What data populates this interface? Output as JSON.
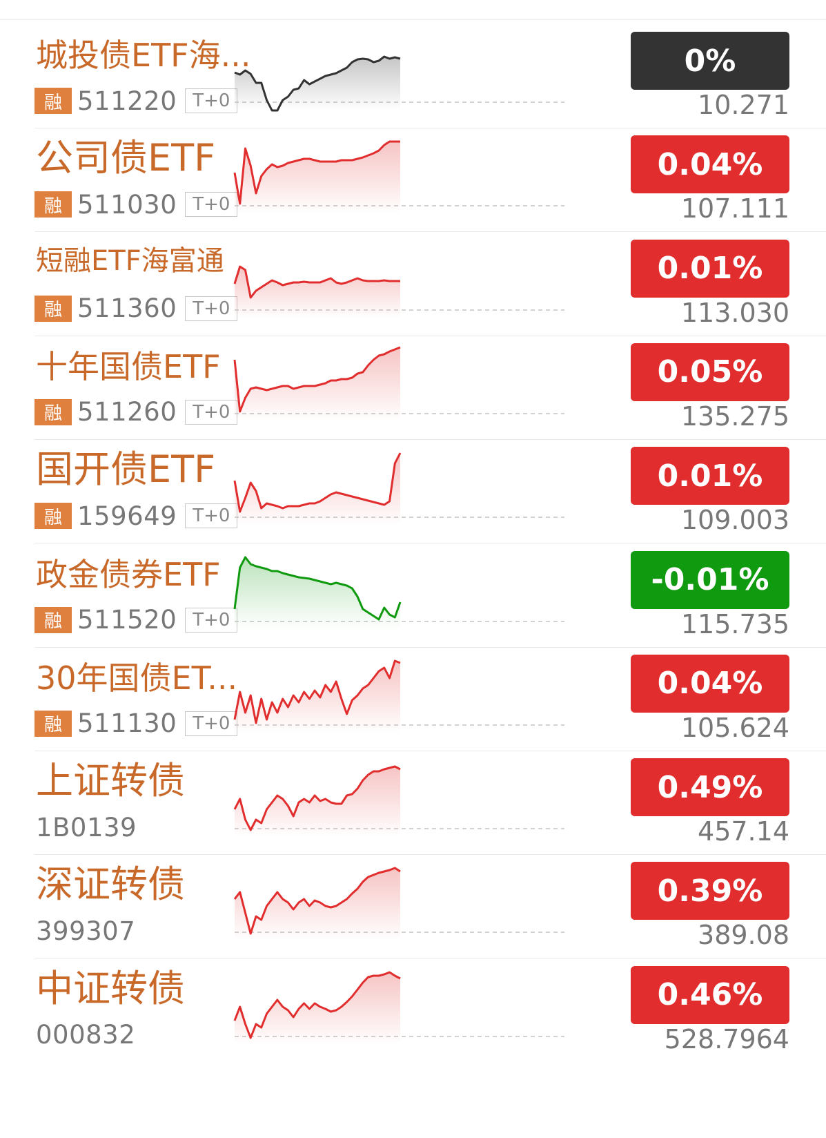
{
  "colors": {
    "up": "#e12d2d",
    "down": "#0f9a0f",
    "flat": "#333333",
    "name": "#c8692a",
    "tag_bg": "#e0803e"
  },
  "rows": [
    {
      "name": "城投债ETF海...",
      "code": "511220",
      "rong": "融",
      "tplus": "T+0",
      "change": "0%",
      "price": "10.271",
      "trend": "flat",
      "name_size": "m",
      "spark": [
        55,
        58,
        52,
        57,
        70,
        70,
        95,
        110,
        110,
        95,
        90,
        80,
        78,
        66,
        72,
        68,
        64,
        60,
        58,
        56,
        52,
        48,
        40,
        36,
        35,
        36,
        40,
        38,
        32,
        35,
        33,
        35
      ]
    },
    {
      "name": "公司债ETF",
      "code": "511030",
      "rong": "融",
      "tplus": "T+0",
      "change": "0.04%",
      "price": "107.111",
      "trend": "up",
      "name_size": "l",
      "spark": [
        50,
        95,
        15,
        40,
        80,
        55,
        45,
        38,
        42,
        40,
        36,
        34,
        32,
        30,
        30,
        32,
        34,
        34,
        34,
        34,
        32,
        32,
        32,
        30,
        28,
        25,
        22,
        18,
        10,
        5,
        5,
        5
      ]
    },
    {
      "name": "短融ETF海富通",
      "code": "511360",
      "rong": "融",
      "tplus": "T+0",
      "change": "0.01%",
      "price": "113.030",
      "trend": "up",
      "name_size": "s",
      "spark": [
        60,
        35,
        40,
        80,
        70,
        65,
        60,
        55,
        58,
        62,
        60,
        58,
        58,
        57,
        58,
        58,
        58,
        55,
        52,
        58,
        60,
        58,
        55,
        52,
        55,
        56,
        56,
        56,
        55,
        56,
        56,
        56
      ]
    },
    {
      "name": "十年国债ETF",
      "code": "511260",
      "rong": "融",
      "tplus": "T+0",
      "change": "0.05%",
      "price": "135.275",
      "trend": "up",
      "name_size": "m",
      "spark": [
        20,
        95,
        75,
        62,
        60,
        62,
        64,
        62,
        60,
        58,
        58,
        62,
        60,
        58,
        58,
        58,
        56,
        54,
        50,
        50,
        48,
        48,
        46,
        40,
        38,
        28,
        20,
        14,
        12,
        8,
        5,
        2
      ]
    },
    {
      "name": "国开债ETF",
      "code": "159649",
      "rong": "融",
      "tplus": "T+0",
      "change": "0.01%",
      "price": "109.003",
      "trend": "up",
      "name_size": "l",
      "spark": [
        45,
        90,
        70,
        48,
        60,
        85,
        78,
        80,
        82,
        85,
        82,
        82,
        82,
        80,
        78,
        78,
        75,
        70,
        65,
        62,
        64,
        66,
        68,
        70,
        72,
        74,
        76,
        78,
        80,
        75,
        20,
        5
      ]
    },
    {
      "name": "政金债券ETF",
      "code": "511520",
      "rong": "融",
      "tplus": "T+0",
      "change": "-0.01%",
      "price": "115.735",
      "trend": "down",
      "name_size": "m",
      "spark": [
        80,
        20,
        5,
        15,
        18,
        20,
        22,
        25,
        25,
        28,
        30,
        32,
        34,
        35,
        36,
        38,
        40,
        42,
        44,
        42,
        44,
        46,
        50,
        62,
        80,
        85,
        90,
        95,
        78,
        88,
        92,
        70
      ]
    },
    {
      "name": "30年国债ET...",
      "code": "511130",
      "rong": "融",
      "tplus": "T+0",
      "change": "0.04%",
      "price": "105.624",
      "trend": "up",
      "name_size": "m",
      "spark": [
        90,
        50,
        80,
        55,
        95,
        60,
        90,
        65,
        80,
        60,
        72,
        55,
        65,
        50,
        60,
        48,
        58,
        40,
        50,
        35,
        60,
        82,
        62,
        55,
        45,
        40,
        30,
        20,
        15,
        30,
        5,
        8
      ]
    },
    {
      "name": "上证转债",
      "code": "1B0139",
      "tplus": "",
      "change": "0.49%",
      "price": "457.14",
      "trend": "up",
      "name_size": "l",
      "spark": [
        70,
        55,
        85,
        100,
        85,
        90,
        70,
        60,
        50,
        55,
        65,
        80,
        60,
        55,
        60,
        50,
        58,
        55,
        60,
        62,
        62,
        50,
        48,
        40,
        28,
        20,
        15,
        15,
        12,
        10,
        8,
        12
      ]
    },
    {
      "name": "深证转债",
      "code": "399307",
      "rong": "",
      "tplus": "",
      "change": "0.39%",
      "price": "389.08",
      "trend": "up",
      "name_size": "l",
      "spark": [
        50,
        40,
        70,
        100,
        75,
        80,
        60,
        50,
        40,
        50,
        55,
        65,
        55,
        50,
        60,
        52,
        55,
        60,
        62,
        60,
        55,
        50,
        42,
        35,
        25,
        18,
        15,
        12,
        10,
        8,
        5,
        10
      ]
    },
    {
      "name": "中证转债",
      "code": "000832",
      "rong": "",
      "tplus": "",
      "change": "0.46%",
      "price": "528.7964",
      "trend": "up",
      "name_size": "l",
      "spark": [
        75,
        55,
        80,
        100,
        80,
        85,
        65,
        55,
        45,
        55,
        60,
        70,
        58,
        50,
        58,
        50,
        55,
        58,
        62,
        60,
        55,
        48,
        40,
        30,
        20,
        12,
        10,
        10,
        8,
        5,
        10,
        14
      ]
    }
  ]
}
